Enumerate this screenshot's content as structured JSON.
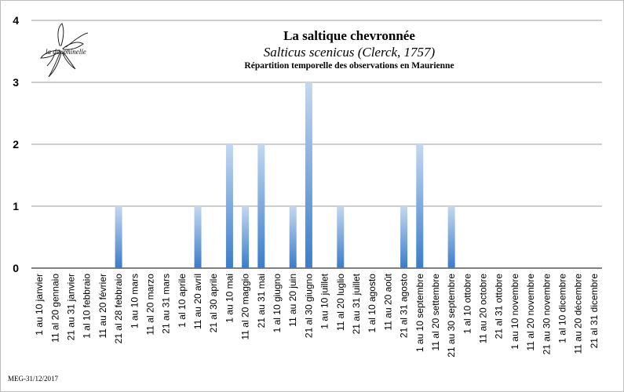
{
  "header": {
    "title": "La saltique chevronnée",
    "subtitle": "Salticus scenicus (Clerck, 1757)",
    "caption": "Répartition temporelle des observations en Maurienne"
  },
  "logo": {
    "text": "la dauphinelle",
    "icon": "lily-flower-icon"
  },
  "footer": {
    "credit": "MEG-31/12/2017"
  },
  "colors": {
    "bar_top": "#c4d8f0",
    "bar_bottom": "#3b7cc9",
    "grid": "#9e9e9e",
    "axis": "#000000"
  },
  "chart_data": {
    "type": "bar",
    "title": "",
    "xlabel": "",
    "ylabel": "",
    "ylim": [
      0,
      4
    ],
    "yticks": [
      0,
      1,
      2,
      3,
      4
    ],
    "grid": true,
    "legend": "none",
    "categories": [
      "1 au 10 janvier",
      "11 al 20 gennaio",
      "21 au 31 janvier",
      "1 al 10 febbraio",
      "11 au 20 février",
      "21 al 28 febbraio",
      "1 au 10 mars",
      "11 al 20 marzo",
      "21 au 31 mars",
      "1 al 10 aprile",
      "11 au 20 avril",
      "21 al 30 aprile",
      "1 au 10 mai",
      "11 al 20 maggio",
      "21 au 31 mai",
      "1 al 10 giugno",
      "11 au 20 juin",
      "21 al 30 giugno",
      "1 au 10 juillet",
      "11 al 20 luglio",
      "21 au 31 juillet",
      "1 al 10 agosto",
      "11 au 20 août",
      "21 al 31 agosto",
      "1 au 10 septembre",
      "11 al 20 settembre",
      "21 au 30 septembre",
      "1 al 10 ottobre",
      "11 au 20 octobre",
      "21 al 31 ottobre",
      "1 au 10 novembre",
      "11 al 20 novembre",
      "21 au 30 novembre",
      "1 al 10 dicembre",
      "11 au 20 décembre",
      "21 al 31 dicembre"
    ],
    "values": [
      0,
      0,
      0,
      0,
      0,
      1,
      0,
      0,
      0,
      0,
      1,
      0,
      2,
      1,
      2,
      0,
      1,
      3,
      0,
      1,
      0,
      0,
      0,
      1,
      2,
      0,
      1,
      0,
      0,
      0,
      0,
      0,
      0,
      0,
      0,
      0
    ]
  }
}
